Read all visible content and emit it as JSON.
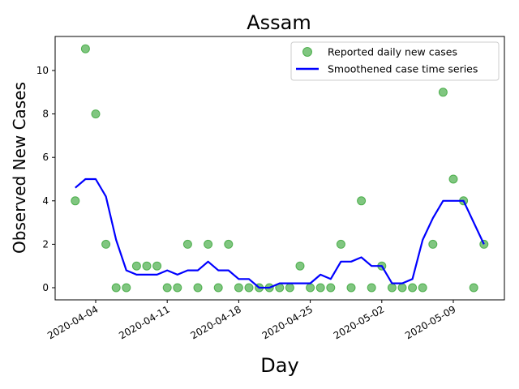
{
  "chart_data": {
    "type": "line",
    "title": "Assam",
    "xlabel": "Day",
    "ylabel": "Observed New Cases",
    "xlim": [
      "2020-03-31",
      "2020-05-12"
    ],
    "ylim": [
      -0.6,
      11.6
    ],
    "x_ticks": [
      "2020-04-04",
      "2020-04-11",
      "2020-04-18",
      "2020-04-25",
      "2020-05-02",
      "2020-05-09"
    ],
    "y_ticks": [
      0,
      2,
      4,
      6,
      8,
      10
    ],
    "grid": false,
    "legend_position": "top-right",
    "series": [
      {
        "name": "Reported daily new cases",
        "kind": "scatter",
        "color": "#2ca02c",
        "points": [
          [
            "2020-04-02",
            4
          ],
          [
            "2020-04-03",
            11
          ],
          [
            "2020-04-04",
            8
          ],
          [
            "2020-04-05",
            2
          ],
          [
            "2020-04-06",
            0
          ],
          [
            "2020-04-07",
            0
          ],
          [
            "2020-04-08",
            1
          ],
          [
            "2020-04-09",
            1
          ],
          [
            "2020-04-10",
            1
          ],
          [
            "2020-04-11",
            0
          ],
          [
            "2020-04-12",
            0
          ],
          [
            "2020-04-13",
            2
          ],
          [
            "2020-04-14",
            0
          ],
          [
            "2020-04-15",
            2
          ],
          [
            "2020-04-16",
            0
          ],
          [
            "2020-04-17",
            2
          ],
          [
            "2020-04-18",
            0
          ],
          [
            "2020-04-19",
            0
          ],
          [
            "2020-04-20",
            0
          ],
          [
            "2020-04-21",
            0
          ],
          [
            "2020-04-22",
            0
          ],
          [
            "2020-04-23",
            0
          ],
          [
            "2020-04-24",
            1
          ],
          [
            "2020-04-25",
            0
          ],
          [
            "2020-04-26",
            0
          ],
          [
            "2020-04-27",
            0
          ],
          [
            "2020-04-28",
            2
          ],
          [
            "2020-04-29",
            0
          ],
          [
            "2020-04-30",
            4
          ],
          [
            "2020-05-01",
            0
          ],
          [
            "2020-05-02",
            1
          ],
          [
            "2020-05-03",
            0
          ],
          [
            "2020-05-04",
            0
          ],
          [
            "2020-05-05",
            0
          ],
          [
            "2020-05-06",
            0
          ],
          [
            "2020-05-07",
            2
          ],
          [
            "2020-05-08",
            9
          ],
          [
            "2020-05-09",
            5
          ],
          [
            "2020-05-10",
            4
          ],
          [
            "2020-05-11",
            0
          ],
          [
            "2020-05-12",
            2
          ]
        ]
      },
      {
        "name": "Smoothened case time series",
        "kind": "line",
        "color": "#0000ff",
        "points": [
          [
            "2020-04-02",
            4.6
          ],
          [
            "2020-04-03",
            5.0
          ],
          [
            "2020-04-04",
            5.0
          ],
          [
            "2020-04-05",
            4.2
          ],
          [
            "2020-04-06",
            2.2
          ],
          [
            "2020-04-07",
            0.8
          ],
          [
            "2020-04-08",
            0.6
          ],
          [
            "2020-04-09",
            0.6
          ],
          [
            "2020-04-10",
            0.6
          ],
          [
            "2020-04-11",
            0.8
          ],
          [
            "2020-04-12",
            0.6
          ],
          [
            "2020-04-13",
            0.8
          ],
          [
            "2020-04-14",
            0.8
          ],
          [
            "2020-04-15",
            1.2
          ],
          [
            "2020-04-16",
            0.8
          ],
          [
            "2020-04-17",
            0.8
          ],
          [
            "2020-04-18",
            0.4
          ],
          [
            "2020-04-19",
            0.4
          ],
          [
            "2020-04-20",
            0.0
          ],
          [
            "2020-04-21",
            0.0
          ],
          [
            "2020-04-22",
            0.2
          ],
          [
            "2020-04-23",
            0.2
          ],
          [
            "2020-04-24",
            0.2
          ],
          [
            "2020-04-25",
            0.2
          ],
          [
            "2020-04-26",
            0.6
          ],
          [
            "2020-04-27",
            0.4
          ],
          [
            "2020-04-28",
            1.2
          ],
          [
            "2020-04-29",
            1.2
          ],
          [
            "2020-04-30",
            1.4
          ],
          [
            "2020-05-01",
            1.0
          ],
          [
            "2020-05-02",
            1.0
          ],
          [
            "2020-05-03",
            0.2
          ],
          [
            "2020-05-04",
            0.2
          ],
          [
            "2020-05-05",
            0.4
          ],
          [
            "2020-05-06",
            2.2
          ],
          [
            "2020-05-07",
            3.2
          ],
          [
            "2020-05-08",
            4.0
          ],
          [
            "2020-05-09",
            4.0
          ],
          [
            "2020-05-10",
            4.0
          ],
          [
            "2020-05-11",
            3.0
          ],
          [
            "2020-05-12",
            2.0
          ]
        ]
      }
    ]
  }
}
